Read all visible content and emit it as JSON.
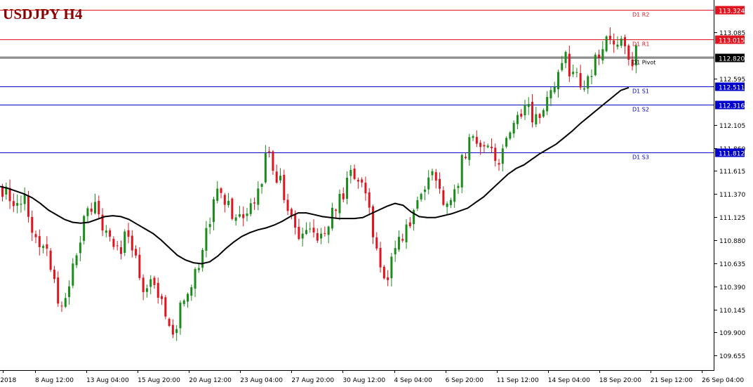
{
  "header": {
    "title": "USDJPY H4"
  },
  "colors": {
    "bull": "#1a8c1a",
    "bear": "#e0141e",
    "ma": "#000000",
    "resistance": "#e0141e",
    "pivot": "#000000",
    "support": "#0000cc",
    "axis": "#000000"
  },
  "chart_data": {
    "type": "candlestick",
    "title": "USDJPY H4",
    "ylim": [
      109.5,
      113.43
    ],
    "yticks": [
      113.085,
      112.595,
      112.105,
      111.86,
      111.615,
      111.37,
      111.125,
      110.88,
      110.635,
      110.39,
      110.145,
      109.9,
      109.655
    ],
    "ytick_labels": [
      "113.085",
      "112.595",
      "112.105",
      "111.860",
      "111.615",
      "111.370",
      "111.125",
      "110.880",
      "110.635",
      "110.390",
      "110.145",
      "109.900",
      "109.655"
    ],
    "xtick_labels": [
      "ug 2018",
      "8 Aug 12:00",
      "13 Aug 04:00",
      "15 Aug 20:00",
      "20 Aug 12:00",
      "23 Aug 04:00",
      "27 Aug 20:00",
      "30 Aug 12:00",
      "4 Sep 04:00",
      "6 Sep 20:00",
      "11 Sep 12:00",
      "14 Sep 04:00",
      "18 Sep 20:00",
      "21 Sep 12:00",
      "26 Sep 04:00"
    ],
    "levels": [
      {
        "name": "D1 R2",
        "value": 113.324,
        "label": "113.324",
        "kind": "resistance"
      },
      {
        "name": "D1 R1",
        "value": 113.015,
        "label": "113.015",
        "kind": "resistance"
      },
      {
        "name": "D1 Pivot",
        "value": 112.82,
        "label": "112.820",
        "kind": "pivot"
      },
      {
        "name": "D1 S1",
        "value": 112.511,
        "label": "112.511",
        "kind": "support"
      },
      {
        "name": "D1 S2",
        "value": 112.316,
        "label": "112.316",
        "kind": "support"
      },
      {
        "name": "D1 S3",
        "value": 111.812,
        "label": "111.812",
        "kind": "support"
      }
    ],
    "close_path": [
      111.45,
      111.28,
      111.15,
      111.35,
      111.05,
      110.95,
      110.75,
      110.55,
      110.25,
      110.35,
      110.62,
      110.9,
      111.2,
      111.35,
      111.1,
      110.9,
      110.7,
      110.85,
      110.95,
      110.55,
      110.35,
      110.6,
      110.3,
      110.05,
      109.85,
      110.15,
      110.35,
      110.55,
      110.75,
      111.1,
      111.4,
      111.3,
      111.25,
      111.1,
      111.05,
      111.2,
      111.4,
      111.75,
      111.7,
      111.5,
      111.3,
      111.05,
      110.85,
      110.95,
      111.0,
      110.9,
      111.1,
      111.2,
      111.45,
      111.6,
      111.5,
      111.3,
      111.0,
      110.7,
      110.5,
      110.75,
      110.9,
      111.1,
      111.2,
      111.45,
      111.6,
      111.5,
      111.35,
      111.4,
      111.55,
      111.85,
      112.0,
      111.9,
      111.95,
      111.8,
      111.75,
      111.9,
      112.2,
      112.3,
      112.25,
      112.1,
      112.3,
      112.5,
      112.7,
      112.8,
      112.65,
      112.55,
      112.6,
      112.75,
      112.85,
      112.95,
      112.9,
      112.95,
      112.8,
      112.85
    ],
    "ma_values": [
      111.45,
      111.43,
      111.4,
      111.37,
      111.33,
      111.27,
      111.2,
      111.15,
      111.1,
      111.07,
      111.06,
      111.07,
      111.1,
      111.13,
      111.14,
      111.13,
      111.1,
      111.05,
      111.0,
      110.95,
      110.88,
      110.8,
      110.72,
      110.67,
      110.64,
      110.63,
      110.65,
      110.71,
      110.79,
      110.86,
      110.92,
      110.96,
      110.99,
      111.01,
      111.04,
      111.08,
      111.13,
      111.17,
      111.17,
      111.15,
      111.13,
      111.12,
      111.11,
      111.11,
      111.11,
      111.12,
      111.16,
      111.2,
      111.24,
      111.27,
      111.25,
      111.18,
      111.13,
      111.12,
      111.12,
      111.14,
      111.16,
      111.19,
      111.22,
      111.28,
      111.34,
      111.42,
      111.5,
      111.58,
      111.64,
      111.68,
      111.74,
      111.8,
      111.85,
      111.9,
      111.97,
      112.04,
      112.12,
      112.19,
      112.26,
      112.33,
      112.4,
      112.47,
      112.5
    ]
  }
}
